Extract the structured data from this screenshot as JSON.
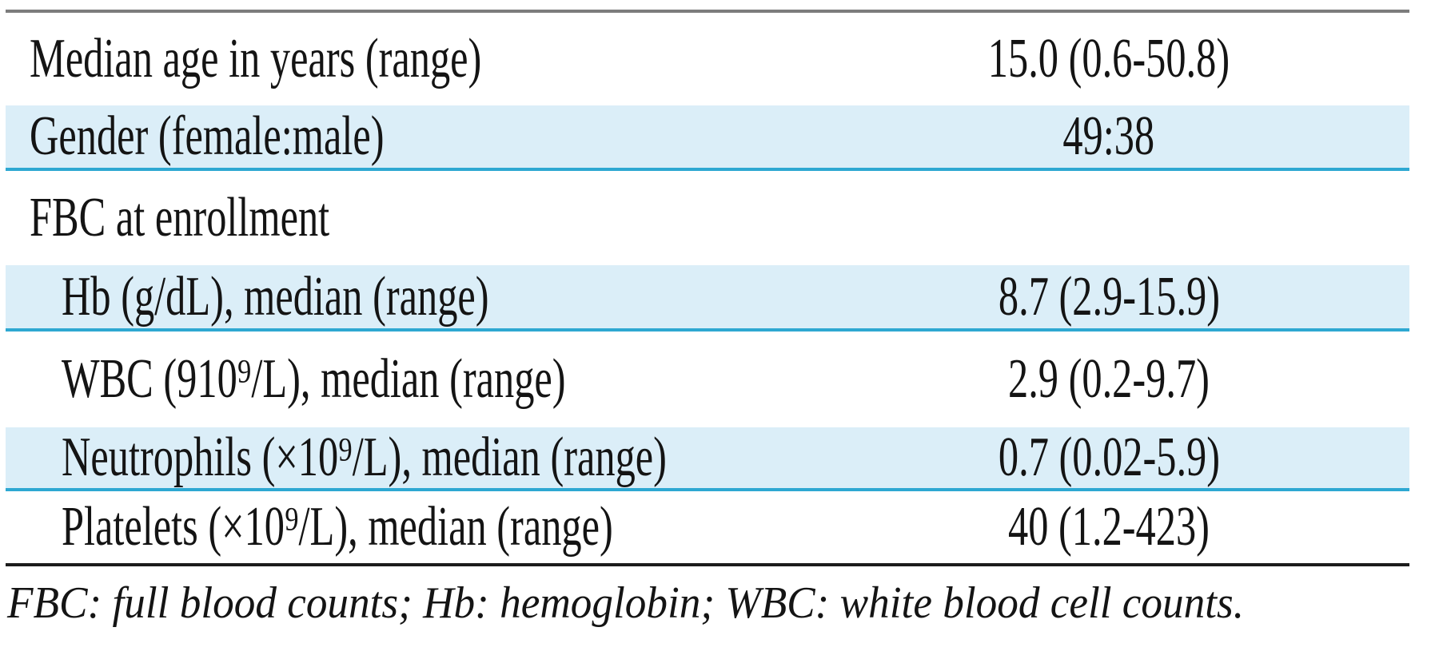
{
  "table": {
    "rows": [
      {
        "label": "Median age in years (range)",
        "value": "15.0 (0.6-50.8)"
      },
      {
        "label": "Gender (female:male)",
        "value": "49:38"
      },
      {
        "label": "FBC at enrollment",
        "value": ""
      },
      {
        "label": "Hb (g/dL), median (range)",
        "value": "8.7 (2.9-15.9)"
      },
      {
        "label": "WBC (910⁹/L), median (range)",
        "value": "2.9 (0.2-9.7)"
      },
      {
        "label": "Neutrophils (×10⁹/L), median (range)",
        "value": "0.7 (0.02-5.9)"
      },
      {
        "label": "Platelets (×10⁹/L), median (range)",
        "value": "40 (1.2-423)"
      }
    ],
    "footnote": "FBC: full blood counts; Hb: hemoglobin; WBC: white blood cell counts.",
    "colors": {
      "shaded_row_bg": "#dbeef8",
      "row_divider": "#2ea8d2",
      "top_rule": "#7d7d7d",
      "bottom_rule": "#1c1c1c",
      "text": "#141414"
    }
  }
}
